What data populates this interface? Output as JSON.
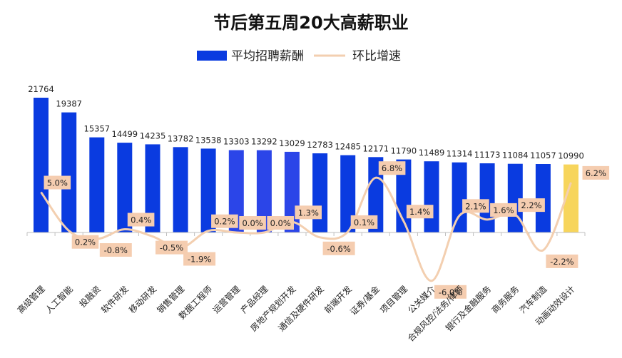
{
  "chart_data": {
    "type": "bar",
    "title": "节后第五周20大高薪职业",
    "legend": {
      "placement": "top-center"
    },
    "categories": [
      "高级管理",
      "人工智能",
      "投融资",
      "软件研发",
      "移动研发",
      "销售管理",
      "数据工程师",
      "运营管理",
      "产品经理",
      "房地产规划开发",
      "通信及硬件研发",
      "前端开发",
      "证券/基金",
      "项目管理",
      "公关媒介",
      "合规风控/法务/律师",
      "银行及金融服务",
      "商务服务",
      "汽车制造",
      "动画动效设计"
    ],
    "series": [
      {
        "name": "平均招聘薪酬",
        "kind": "bar",
        "values": [
          21764,
          19387,
          15357,
          14499,
          14235,
          13782,
          13538,
          13303,
          13292,
          13029,
          12783,
          12485,
          12171,
          11790,
          11489,
          11314,
          11173,
          11084,
          11057,
          10990
        ]
      },
      {
        "name": "环比增速",
        "kind": "line",
        "values": [
          5.0,
          0.2,
          -0.8,
          0.4,
          -0.5,
          -1.9,
          0.2,
          0.0,
          0.0,
          1.3,
          -0.6,
          0.1,
          6.8,
          1.4,
          -6.0,
          2.1,
          1.6,
          2.2,
          -2.2,
          6.2
        ],
        "labels": [
          "5.0%",
          "0.2%",
          "-0.8%",
          "0.4%",
          "-0.5%",
          "-1.9%",
          "0.2%",
          "0.0%",
          "0.0%",
          "1.3%",
          "-0.6%",
          "0.1%",
          "6.8%",
          "1.4%",
          "-6.0%",
          "2.1%",
          "1.6%",
          "2.2%",
          "-2.2%",
          "6.2%"
        ]
      }
    ],
    "ylim": [
      0,
      21764
    ],
    "y2lim": [
      -7,
      7
    ],
    "grid": false,
    "colors": {
      "bar": "#0a3be0",
      "bar_mid": "#2b45e8",
      "bar_highlight": "#f7d55c",
      "line": "#f3cfb0",
      "label_bg": "#f5cdb0"
    }
  }
}
